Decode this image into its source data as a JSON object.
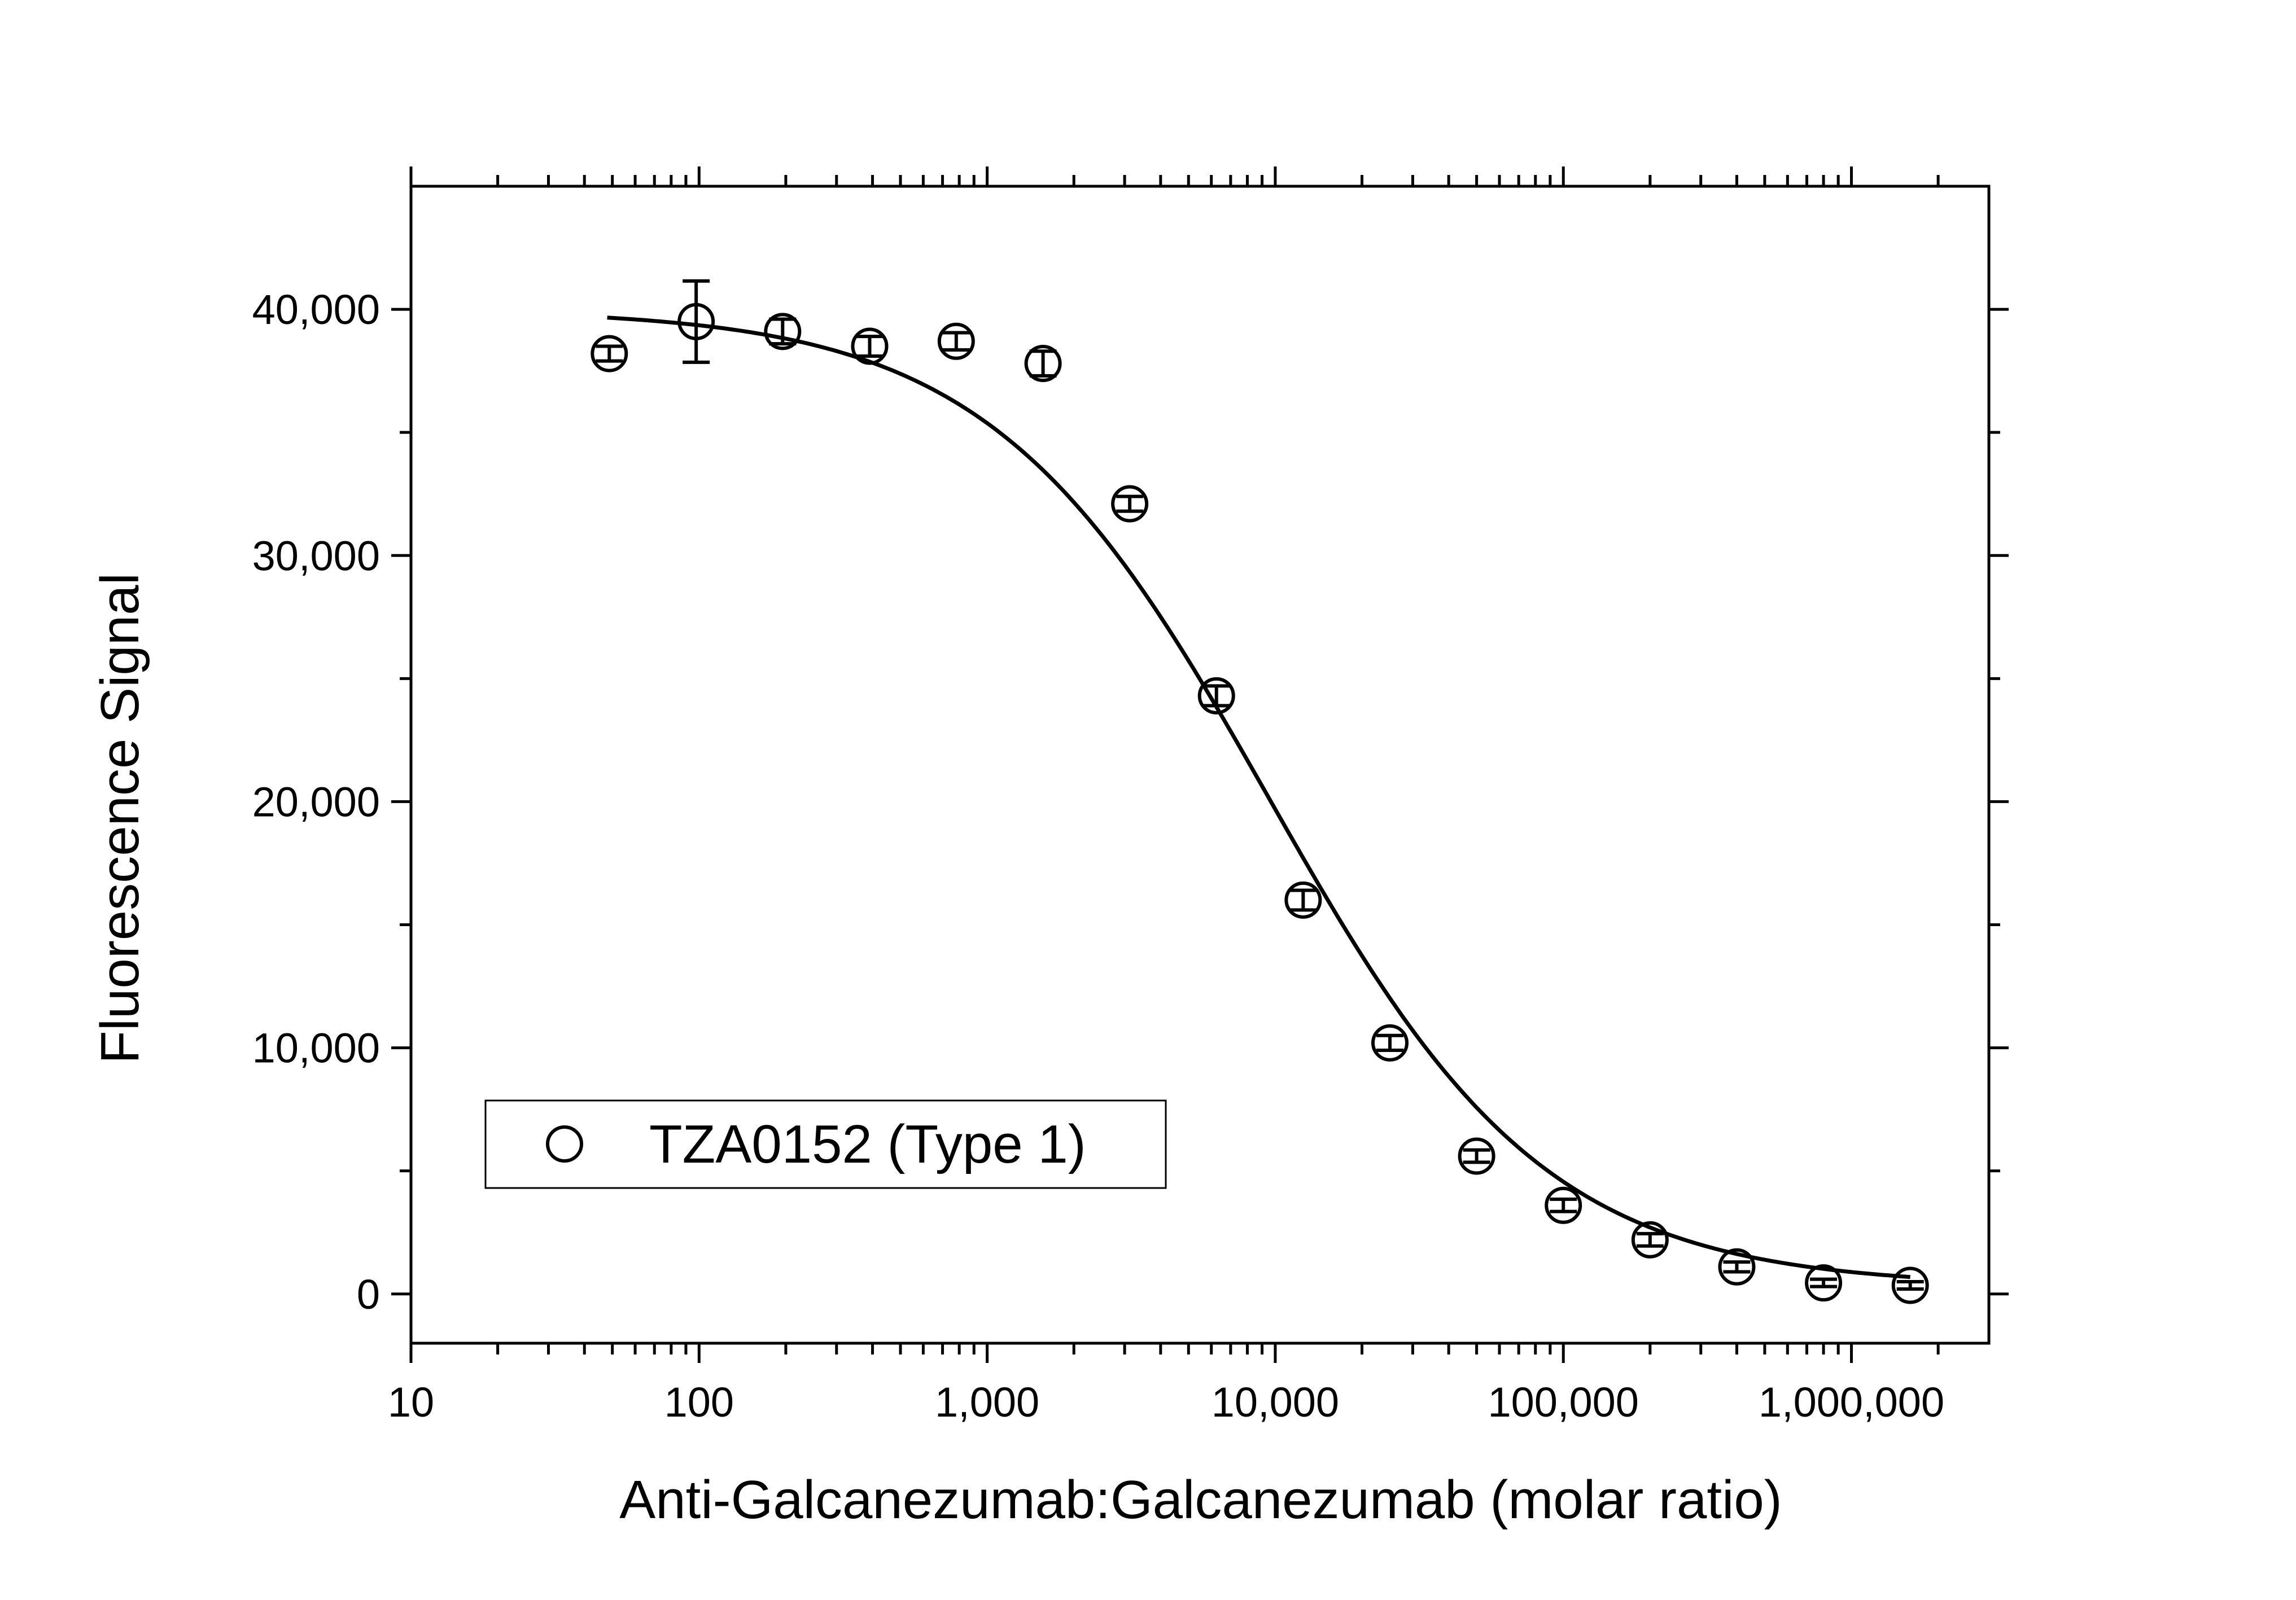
{
  "chart_data": {
    "type": "scatter",
    "title": "",
    "xlabel": "Anti-Galcanezumab:Galcanezumab (molar ratio)",
    "ylabel": "Fluorescence Signal",
    "xscale": "log",
    "xlim": [
      10,
      3000000
    ],
    "ylim": [
      -2000,
      45000
    ],
    "x_ticks": [
      10,
      100,
      1000,
      10000,
      100000,
      1000000
    ],
    "x_tick_labels": [
      "10",
      "100",
      "1,000",
      "10,000",
      "100,000",
      "1,000,000"
    ],
    "y_ticks": [
      0,
      10000,
      20000,
      30000,
      40000
    ],
    "y_tick_labels": [
      "0",
      "10,000",
      "20,000",
      "30,000",
      "40,000"
    ],
    "grid": false,
    "legend_position": "bottom-left",
    "series": [
      {
        "name": "TZA0152 (Type 1)",
        "marker": "open-circle",
        "x": [
          48.8,
          97.7,
          195,
          391,
          781,
          1563,
          3125,
          6250,
          12500,
          25000,
          50000,
          100000,
          200000,
          400000,
          800000,
          1600000
        ],
        "y": [
          38200,
          39500,
          39100,
          38500,
          38700,
          37800,
          32100,
          24300,
          16000,
          10200,
          5600,
          3600,
          2200,
          1100,
          450,
          350
        ],
        "yerr": [
          300,
          1650,
          500,
          400,
          350,
          500,
          300,
          400,
          400,
          300,
          250,
          250,
          250,
          200,
          150,
          150
        ]
      }
    ],
    "fit_curve": {
      "type": "4PL",
      "top": 40000,
      "bottom": 300,
      "ec50": 9500,
      "hill": 0.9,
      "x_range": [
        48,
        1600000
      ]
    }
  }
}
